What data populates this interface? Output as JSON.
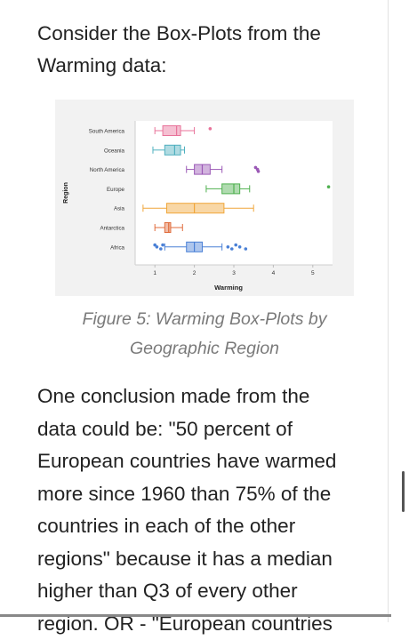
{
  "intro": {
    "line1": "Consider the Box-Plots from the",
    "line2": "Warming data:"
  },
  "figure": {
    "caption_line1": "Figure 5:  Warming Box-Plots by",
    "caption_line2": "Geographic Region"
  },
  "chart_data": {
    "type": "box",
    "xlabel": "Warming",
    "ylabel": "Region",
    "xlim": [
      0.5,
      5.5
    ],
    "xticks": [
      "1",
      "2",
      "3",
      "4",
      "5"
    ],
    "grid": false,
    "series": [
      {
        "category": "South America",
        "color": "#e8739a",
        "whisker_low": 1.0,
        "q1": 1.2,
        "median": 1.55,
        "q3": 1.65,
        "whisker_high": 2.0,
        "outliers": [
          2.4
        ]
      },
      {
        "category": "Oceania",
        "color": "#4fb0bf",
        "whisker_low": 0.95,
        "q1": 1.25,
        "median": 1.5,
        "q3": 1.65,
        "whisker_high": 1.75,
        "outliers": []
      },
      {
        "category": "North America",
        "color": "#9b59b6",
        "whisker_low": 1.8,
        "q1": 2.0,
        "median": 2.2,
        "q3": 2.4,
        "whisker_high": 2.7,
        "outliers": [
          3.55,
          3.6,
          3.62
        ]
      },
      {
        "category": "Europe",
        "color": "#4fb04f",
        "whisker_low": 2.3,
        "q1": 2.7,
        "median": 3.0,
        "q3": 3.15,
        "whisker_high": 3.4,
        "outliers": [
          5.4
        ]
      },
      {
        "category": "Asia",
        "color": "#f0a63a",
        "whisker_low": 0.7,
        "q1": 1.3,
        "median": 2.0,
        "q3": 2.75,
        "whisker_high": 3.5,
        "outliers": []
      },
      {
        "category": "Antarctica",
        "color": "#e06c3c",
        "whisker_low": 1.0,
        "q1": 1.25,
        "median": 1.35,
        "q3": 1.4,
        "whisker_high": 1.7,
        "outliers": []
      },
      {
        "category": "Africa",
        "color": "#4a80d6",
        "whisker_low": 1.25,
        "q1": 1.8,
        "median": 2.0,
        "q3": 2.2,
        "whisker_high": 2.7,
        "outliers": [
          1.0,
          1.05,
          1.15,
          1.2,
          2.85,
          2.95,
          3.05,
          3.15,
          3.3
        ]
      }
    ]
  },
  "conclusion": {
    "lines": [
      "One conclusion made from the",
      "data could be:  \"50 percent of",
      "European countries have warmed",
      "more since 1960 than 75% of the",
      "countries in each of the other",
      "regions\" because it has a median",
      "higher than Q3 of every other",
      "region.  OR - \"European countries"
    ]
  }
}
